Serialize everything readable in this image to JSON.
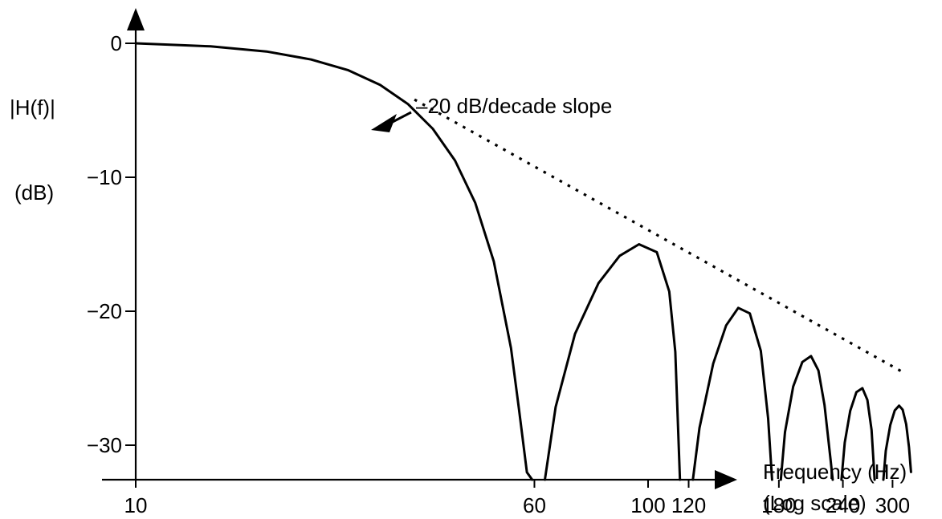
{
  "chart_data": {
    "type": "line",
    "title": "",
    "ylabel_line1": "|H(f)|",
    "ylabel_line2": "(dB)",
    "xlabel_line1": "Frequency (Hz)",
    "xlabel_line2": "(Log scale)",
    "x_scale": "log",
    "xlim": [
      10,
      500
    ],
    "ylim": [
      -32.6,
      2.5
    ],
    "x_ticks": [
      {
        "value": 10,
        "label": "10"
      },
      {
        "value": 60,
        "label": "60"
      },
      {
        "value": 100,
        "label": "100"
      },
      {
        "value": 120,
        "label": "120"
      },
      {
        "value": 180,
        "label": "180"
      },
      {
        "value": 240,
        "label": "240"
      },
      {
        "value": 300,
        "label": "300"
      }
    ],
    "y_ticks": [
      {
        "value": 0,
        "label": "0"
      },
      {
        "value": -10,
        "label": "−10"
      },
      {
        "value": -20,
        "label": "−20"
      },
      {
        "value": -30,
        "label": "−30"
      }
    ],
    "series": [
      {
        "style": "solid",
        "color": "#000000",
        "segments": [
          {
            "x": [
              10,
              14,
              18,
              22,
              26,
              30,
              34,
              38,
              42,
              46,
              50,
              54,
              56,
              58,
              59.4
            ],
            "y": [
              0,
              -0.23,
              -0.61,
              -1.21,
              -2.01,
              -3.11,
              -4.54,
              -6.38,
              -8.75,
              -11.91,
              -16.29,
              -22.75,
              -27.34,
              -32.02,
              -33.0
            ]
          },
          {
            "x": [
              62.9,
              66,
              72,
              80,
              88,
              96,
              104,
              110,
              113,
              115.4
            ],
            "y": [
              -33.0,
              -27.15,
              -21.69,
              -17.91,
              -15.86,
              -15.0,
              -15.59,
              -18.54,
              -23.03,
              -33.0
            ]
          },
          {
            "x": [
              122.3,
              126,
              134,
              142,
              150,
              158,
              166,
              171.5,
              174.6
            ],
            "y": [
              -33.0,
              -28.71,
              -23.91,
              -21.06,
              -19.75,
              -20.16,
              -22.96,
              -28.0,
              -33.0
            ]
          },
          {
            "x": [
              181.6,
              185,
              192,
              200,
              208,
              215,
              221,
              227,
              229.3
            ],
            "y": [
              -33.0,
              -29.02,
              -25.62,
              -23.79,
              -23.35,
              -24.42,
              -27.0,
              -31.0,
              -33.0
            ]
          },
          {
            "x": [
              238.5,
              242,
              248,
              255,
              262,
              268,
              273,
              276.8
            ],
            "y": [
              -33.0,
              -29.8,
              -27.44,
              -26.04,
              -25.74,
              -26.62,
              -28.87,
              -33.0
            ]
          },
          {
            "x": [
              287.9,
              291,
              297,
              303,
              309,
              314,
              319,
              323,
              326
            ],
            "y": [
              -33.0,
              -30.42,
              -28.49,
              -27.4,
              -27.05,
              -27.35,
              -28.44,
              -30.15,
              -32.0
            ]
          }
        ]
      }
    ],
    "asymptote": {
      "style": "dotted",
      "x": [
        35,
        316
      ],
      "y": [
        -4.2,
        -24.6
      ]
    },
    "annotation": {
      "text": "–20 dB/decade slope"
    }
  }
}
